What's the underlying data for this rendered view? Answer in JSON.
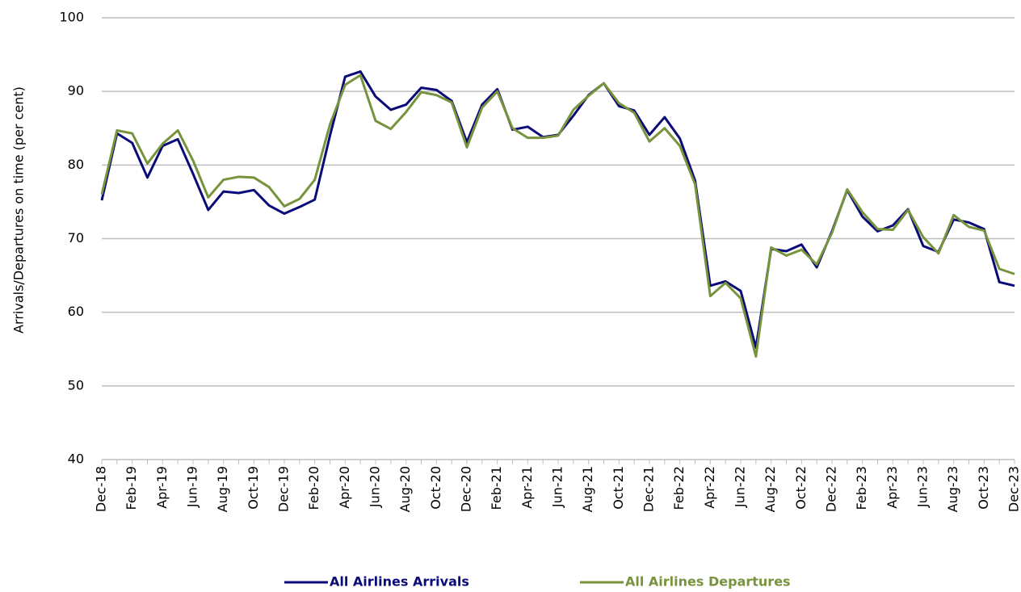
{
  "chart_data": {
    "type": "line",
    "y_label": "Arrivals/Departures on time (per cent)",
    "categories": [
      "Dec-18",
      null,
      "Feb-19",
      null,
      "Apr-19",
      null,
      "Jun-19",
      null,
      "Aug-19",
      null,
      "Oct-19",
      null,
      "Dec-19",
      null,
      "Feb-20",
      null,
      "Apr-20",
      null,
      "Jun-20",
      null,
      "Aug-20",
      null,
      "Oct-20",
      null,
      "Dec-20",
      null,
      "Feb-21",
      null,
      "Apr-21",
      null,
      "Jun-21",
      null,
      "Aug-21",
      null,
      "Oct-21",
      null,
      "Dec-21",
      null,
      "Feb-22",
      null,
      "Apr-22",
      null,
      "Jun-22",
      null,
      "Aug-22",
      null,
      "Oct-22",
      null,
      "Dec-22",
      null,
      "Feb-23",
      null,
      "Apr-23",
      null,
      "Jun-23",
      null,
      "Aug-23",
      null,
      "Oct-23",
      null,
      "Dec-23"
    ],
    "series": [
      {
        "name": "All Airlines Arrivals",
        "color": "#0a0a78",
        "values": [
          75.2,
          84.3,
          83.0,
          78.3,
          82.6,
          83.5,
          78.8,
          73.9,
          76.4,
          76.2,
          76.6,
          74.5,
          73.4,
          74.3,
          75.3,
          84.0,
          92.0,
          92.7,
          89.3,
          87.5,
          88.2,
          90.5,
          90.2,
          88.7,
          83.1,
          88.2,
          90.3,
          84.8,
          85.2,
          83.8,
          84.1,
          86.7,
          89.5,
          91.1,
          88.0,
          87.4,
          84.1,
          86.5,
          83.6,
          77.9,
          63.6,
          64.2,
          62.9,
          55.2,
          68.6,
          68.3,
          69.2,
          66.1,
          71.0,
          76.6,
          73.0,
          71.0,
          71.8,
          74.0,
          69.0,
          68.2,
          72.6,
          72.2,
          71.3,
          64.1,
          63.6
        ]
      },
      {
        "name": "All Airlines Departures",
        "color": "#77933c",
        "values": [
          76.0,
          84.7,
          84.3,
          80.2,
          82.9,
          84.7,
          80.6,
          75.6,
          78.0,
          78.4,
          78.3,
          77.0,
          74.4,
          75.4,
          78.0,
          85.5,
          90.9,
          92.2,
          86.0,
          84.9,
          87.2,
          89.9,
          89.5,
          88.5,
          82.4,
          87.8,
          90.0,
          85.0,
          83.7,
          83.7,
          84.0,
          87.5,
          89.4,
          91.1,
          88.4,
          87.1,
          83.2,
          85.0,
          82.6,
          77.4,
          62.2,
          64.0,
          61.9,
          54.0,
          68.8,
          67.7,
          68.5,
          66.5,
          70.8,
          76.7,
          73.6,
          71.3,
          71.2,
          73.9,
          70.2,
          68.0,
          73.2,
          71.6,
          71.1,
          65.9,
          65.2
        ]
      }
    ],
    "ylim": [
      40,
      100
    ],
    "yticks": [
      40,
      50,
      60,
      70,
      80,
      90,
      100
    ],
    "grid": true,
    "legend": "bottom"
  }
}
